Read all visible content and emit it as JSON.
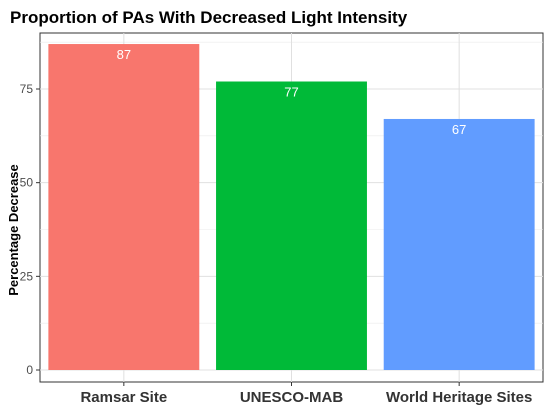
{
  "chart_data": {
    "type": "bar",
    "title": "Proportion of PAs With Decreased Light Intensity",
    "xlabel": "",
    "ylabel": "Percentage Decrease",
    "categories": [
      "Ramsar Site",
      "UNESCO-MAB",
      "World Heritage Sites"
    ],
    "values": [
      87,
      77,
      67
    ],
    "data_labels": [
      "87",
      "77",
      "67"
    ],
    "ylim": [
      0,
      90
    ],
    "yticks": [
      0,
      25,
      50,
      75
    ],
    "colors": [
      "#F8766D",
      "#00BA38",
      "#619CFF"
    ],
    "grid": true,
    "legend": "none"
  }
}
